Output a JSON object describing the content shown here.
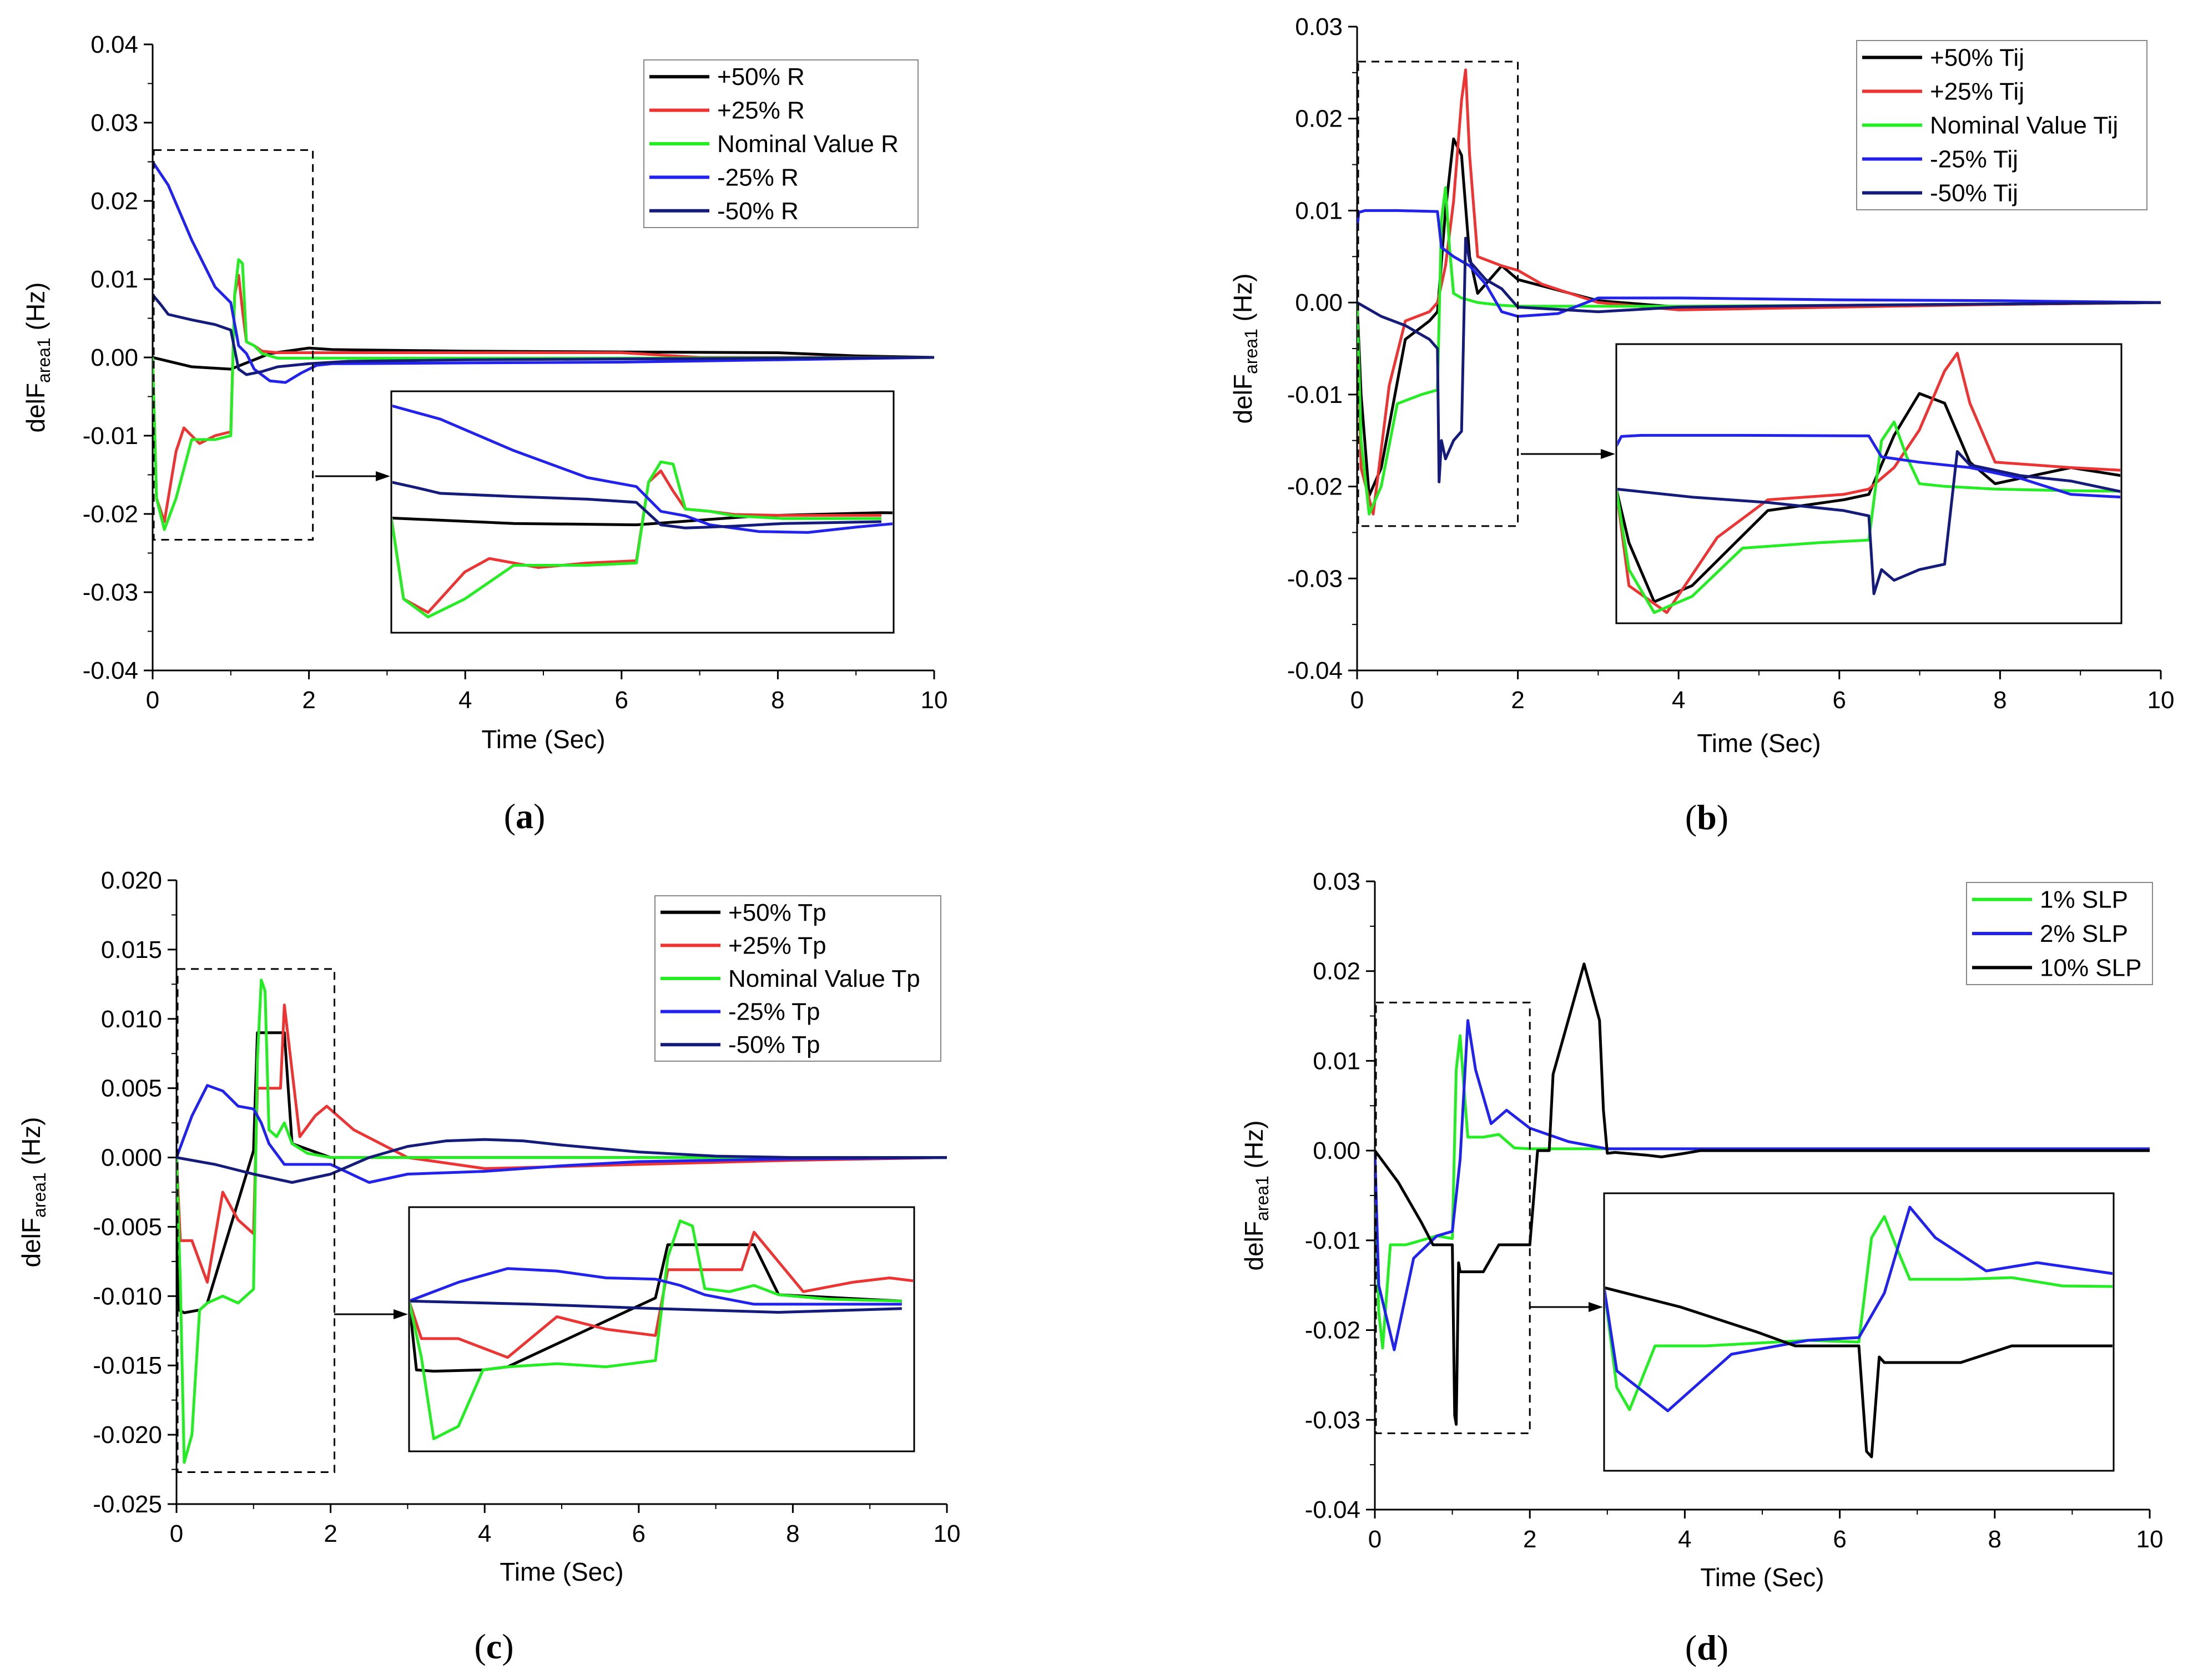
{
  "figure": {
    "panels": [
      "a",
      "b",
      "c",
      "d"
    ]
  },
  "chart_data": [
    {
      "id": "a",
      "type": "line",
      "caption_letter": "a",
      "xlabel": "Time (Sec)",
      "ylabel_main": "delF",
      "ylabel_sub": "area1",
      "ylabel_unit": " (Hz)",
      "xlim": [
        0,
        10
      ],
      "ylim": [
        -0.04,
        0.04
      ],
      "xticks": [
        0,
        2,
        4,
        6,
        8,
        10
      ],
      "xtick_labels": [
        "0",
        "2",
        "4",
        "6",
        "8",
        "10"
      ],
      "yticks": [
        -0.04,
        -0.03,
        -0.02,
        -0.01,
        0,
        0.01,
        0.02,
        0.03,
        0.04
      ],
      "ytick_labels": [
        "-0.04",
        "-0.03",
        "-0.02",
        "-0.01",
        "0.00",
        "0.01",
        "0.02",
        "0.03",
        "0.04"
      ],
      "zoom_box": {
        "x": [
          0,
          2.05
        ],
        "y": [
          -0.0233,
          0.0265
        ]
      },
      "series": [
        {
          "name": "+50% R",
          "color": "#000000",
          "x": [
            0,
            0.5,
            1.0,
            1.5,
            2.0,
            2.3,
            4,
            6,
            8,
            9,
            10
          ],
          "y": [
            0,
            -0.0012,
            -0.0015,
            0.0005,
            0.0012,
            0.001,
            0.0008,
            0.0007,
            0.0006,
            0.0002,
            0
          ]
        },
        {
          "name": "+25% R",
          "color": "#ee3333",
          "x": [
            0,
            0.05,
            0.15,
            0.3,
            0.4,
            0.6,
            0.8,
            1.0,
            1.05,
            1.1,
            1.15,
            1.2,
            1.3,
            1.4,
            1.6,
            2,
            4,
            6,
            7,
            10
          ],
          "y": [
            0,
            -0.018,
            -0.021,
            -0.012,
            -0.009,
            -0.011,
            -0.01,
            -0.0095,
            0.008,
            0.0105,
            0.006,
            0.002,
            0.0015,
            0.0008,
            0.0006,
            0.0006,
            0.0006,
            0.0006,
            0,
            0
          ]
        },
        {
          "name": "Nominal Value R",
          "color": "#22ee22",
          "x": [
            0,
            0.05,
            0.15,
            0.3,
            0.5,
            0.8,
            1.0,
            1.05,
            1.1,
            1.15,
            1.2,
            1.3,
            1.4,
            1.6,
            2,
            4,
            6,
            10
          ],
          "y": [
            0,
            -0.018,
            -0.022,
            -0.018,
            -0.0105,
            -0.0105,
            -0.01,
            0.008,
            0.0125,
            0.012,
            0.002,
            0.0015,
            0.0005,
            -0.0001,
            -0.0001,
            -0.0001,
            -0.0001,
            0
          ]
        },
        {
          "name": "-25% R",
          "color": "#2222ee",
          "x": [
            0,
            0.2,
            0.5,
            0.8,
            1.0,
            1.1,
            1.2,
            1.3,
            1.5,
            1.7,
            1.9,
            2.1,
            2.3,
            4,
            6,
            10
          ],
          "y": [
            0.025,
            0.022,
            0.015,
            0.009,
            0.007,
            0.0015,
            0.0005,
            -0.0015,
            -0.003,
            -0.0032,
            -0.002,
            -0.001,
            -0.0008,
            -0.0007,
            -0.0006,
            0
          ]
        },
        {
          "name": "-50% R",
          "color": "#141b7a",
          "x": [
            0,
            0.1,
            0.2,
            0.5,
            0.8,
            1.0,
            1.1,
            1.2,
            1.4,
            1.6,
            2.0,
            2.5,
            4,
            6,
            10
          ],
          "y": [
            0.008,
            0.0068,
            0.0055,
            0.0048,
            0.0042,
            0.0035,
            -0.0015,
            -0.0022,
            -0.0018,
            -0.0012,
            -0.0008,
            -0.0005,
            -0.0003,
            -0.0002,
            0
          ]
        }
      ],
      "legend": [
        "+50% R",
        "+25% R",
        "Nominal Value R",
        "-25% R",
        "-50% R"
      ]
    },
    {
      "id": "b",
      "type": "line",
      "caption_letter": "b",
      "xlabel": "Time (Sec)",
      "ylabel_main": "delF",
      "ylabel_sub": "area1",
      "ylabel_unit": " (Hz)",
      "xlim": [
        0,
        10
      ],
      "ylim": [
        -0.04,
        0.03
      ],
      "xticks": [
        0,
        2,
        4,
        6,
        8,
        10
      ],
      "xtick_labels": [
        "0",
        "2",
        "4",
        "6",
        "8",
        "10"
      ],
      "yticks": [
        -0.04,
        -0.03,
        -0.02,
        -0.01,
        0,
        0.01,
        0.02,
        0.03
      ],
      "ytick_labels": [
        "-0.04",
        "-0.03",
        "-0.02",
        "-0.01",
        "0.00",
        "0.01",
        "0.02",
        "0.03"
      ],
      "zoom_box": {
        "x": [
          0,
          2.0
        ],
        "y": [
          -0.0243,
          0.0262
        ]
      },
      "series": [
        {
          "name": "+50% Tij",
          "color": "#000000",
          "x": [
            0,
            0.05,
            0.15,
            0.3,
            0.6,
            0.9,
            1.0,
            1.1,
            1.2,
            1.3,
            1.4,
            1.5,
            1.6,
            1.8,
            2.0,
            3,
            4,
            6,
            8,
            10
          ],
          "y": [
            0,
            -0.01,
            -0.021,
            -0.018,
            -0.004,
            -0.002,
            -0.001,
            0.01,
            0.0178,
            0.016,
            0.005,
            0.001,
            0.002,
            0.004,
            0.0025,
            0.0002,
            -0.0005,
            -0.0004,
            -0.0002,
            0
          ]
        },
        {
          "name": "+25% Tij",
          "color": "#ee3333",
          "x": [
            0,
            0.05,
            0.2,
            0.4,
            0.6,
            0.9,
            1.0,
            1.1,
            1.2,
            1.3,
            1.35,
            1.4,
            1.5,
            1.8,
            2.0,
            2.3,
            3,
            4,
            6,
            8,
            10
          ],
          "y": [
            0,
            -0.018,
            -0.023,
            -0.009,
            -0.002,
            -0.001,
            0,
            0.004,
            0.011,
            0.022,
            0.0253,
            0.016,
            0.005,
            0.004,
            0.0035,
            0.002,
            0,
            -0.0008,
            -0.0005,
            -0.0002,
            0
          ]
        },
        {
          "name": "Nominal Value Tij",
          "color": "#22ee22",
          "x": [
            0,
            0.05,
            0.15,
            0.3,
            0.5,
            0.8,
            1.0,
            1.05,
            1.1,
            1.15,
            1.2,
            1.3,
            1.5,
            1.8,
            2,
            3,
            4,
            6,
            10
          ],
          "y": [
            0,
            -0.015,
            -0.023,
            -0.02,
            -0.011,
            -0.01,
            -0.0095,
            0.009,
            0.0125,
            0.006,
            0.001,
            0.0005,
            0,
            -0.0003,
            -0.0004,
            -0.0004,
            -0.0004,
            -0.0003,
            0
          ]
        },
        {
          "name": "-25% Tij",
          "color": "#2222ee",
          "x": [
            0,
            0.02,
            0.1,
            0.5,
            1.0,
            1.05,
            1.2,
            1.4,
            1.6,
            1.8,
            2.0,
            2.5,
            3,
            4,
            6,
            8,
            10
          ],
          "y": [
            0.008,
            0.0098,
            0.01,
            0.01,
            0.0099,
            0.006,
            0.005,
            0.004,
            0.002,
            -0.001,
            -0.0015,
            -0.0012,
            0.0005,
            0.0005,
            0.0003,
            0.0002,
            0
          ]
        },
        {
          "name": "-50% Tij",
          "color": "#141b7a",
          "x": [
            0,
            0.3,
            0.6,
            0.9,
            1.0,
            1.02,
            1.05,
            1.1,
            1.15,
            1.2,
            1.3,
            1.35,
            1.4,
            1.6,
            1.8,
            2.0,
            3,
            4,
            6,
            10
          ],
          "y": [
            0,
            -0.0015,
            -0.0025,
            -0.004,
            -0.005,
            -0.0195,
            -0.015,
            -0.017,
            -0.016,
            -0.015,
            -0.014,
            0.007,
            0.0045,
            0.0025,
            0.0015,
            -0.0005,
            -0.001,
            -0.0005,
            -0.0003,
            0
          ]
        }
      ],
      "legend": [
        "+50% Tij",
        "+25% Tij",
        "Nominal Value Tij",
        "-25% Tij",
        "-50% Tij"
      ]
    },
    {
      "id": "c",
      "type": "line",
      "caption_letter": "c",
      "xlabel": "Time (Sec)",
      "ylabel_main": "delF",
      "ylabel_sub": "area1",
      "ylabel_unit": " (Hz)",
      "xlim": [
        0,
        10
      ],
      "ylim": [
        -0.025,
        0.02
      ],
      "xticks": [
        0,
        2,
        4,
        6,
        8,
        10
      ],
      "xtick_labels": [
        "0",
        "2",
        "4",
        "6",
        "8",
        "10"
      ],
      "yticks": [
        -0.025,
        -0.02,
        -0.015,
        -0.01,
        -0.005,
        0,
        0.005,
        0.01,
        0.015,
        0.02
      ],
      "ytick_labels": [
        "-0.025",
        "-0.020",
        "-0.015",
        "-0.010",
        "-0.005",
        "0.000",
        "0.005",
        "0.010",
        "0.015",
        "0.020"
      ],
      "zoom_box": {
        "x": [
          0,
          2.05
        ],
        "y": [
          -0.0227,
          0.0136
        ]
      },
      "series": [
        {
          "name": "+50% Tp",
          "color": "#000000",
          "x": [
            0,
            0.03,
            0.1,
            0.3,
            0.4,
            1.0,
            1.05,
            1.4,
            1.5,
            2.0,
            4,
            6,
            10
          ],
          "y": [
            0,
            -0.011,
            -0.0112,
            -0.011,
            -0.0105,
            0.0005,
            0.009,
            0.009,
            0.001,
            0,
            0,
            0,
            0
          ]
        },
        {
          "name": "+25% Tp",
          "color": "#ee3333",
          "x": [
            0,
            0.05,
            0.2,
            0.4,
            0.6,
            0.8,
            1.0,
            1.05,
            1.35,
            1.4,
            1.6,
            1.8,
            1.95,
            2.3,
            3,
            4,
            6,
            8,
            10
          ],
          "y": [
            0,
            -0.006,
            -0.006,
            -0.009,
            -0.0025,
            -0.0045,
            -0.0055,
            0.005,
            0.005,
            0.011,
            0.0015,
            0.003,
            0.0037,
            0.002,
            0,
            -0.0008,
            -0.0005,
            -0.0002,
            0
          ]
        },
        {
          "name": "Nominal Value Tp",
          "color": "#22ee22",
          "x": [
            0,
            0.05,
            0.1,
            0.2,
            0.3,
            0.4,
            0.6,
            0.8,
            1.0,
            1.05,
            1.1,
            1.15,
            1.2,
            1.3,
            1.4,
            1.5,
            1.7,
            2.0,
            4,
            6,
            10
          ],
          "y": [
            0,
            -0.009,
            -0.022,
            -0.02,
            -0.011,
            -0.0105,
            -0.01,
            -0.0105,
            -0.0095,
            0.007,
            0.0128,
            0.012,
            0.002,
            0.0015,
            0.0025,
            0.001,
            0.0003,
            0,
            0,
            0,
            0
          ]
        },
        {
          "name": "-25% Tp",
          "color": "#2222ee",
          "x": [
            0,
            0.2,
            0.4,
            0.6,
            0.8,
            1.0,
            1.1,
            1.2,
            1.4,
            1.6,
            2.0,
            2.5,
            3,
            4,
            5,
            6,
            8,
            10
          ],
          "y": [
            0,
            0.003,
            0.0052,
            0.0048,
            0.0037,
            0.0035,
            0.0025,
            0.001,
            -0.0005,
            -0.0005,
            -0.0005,
            -0.0018,
            -0.0012,
            -0.001,
            -0.0006,
            -0.0003,
            -0.0001,
            0
          ]
        },
        {
          "name": "-50% Tp",
          "color": "#141b7a",
          "x": [
            0,
            0.5,
            1.0,
            1.5,
            2.0,
            2.5,
            3,
            3.5,
            4,
            4.5,
            5,
            6,
            7,
            8,
            10
          ],
          "y": [
            0,
            -0.0005,
            -0.0012,
            -0.0018,
            -0.0012,
            0,
            0.0008,
            0.0012,
            0.0013,
            0.0012,
            0.0009,
            0.0004,
            0.0001,
            0,
            0
          ]
        }
      ],
      "legend": [
        "+50% Tp",
        "+25% Tp",
        "Nominal Value Tp",
        "-25% Tp",
        "-50% Tp"
      ]
    },
    {
      "id": "d",
      "type": "line",
      "caption_letter": "d",
      "xlabel": "Time (Sec)",
      "ylabel_main": "delF",
      "ylabel_sub": "area1",
      "ylabel_unit": " (Hz)",
      "xlim": [
        0,
        10
      ],
      "ylim": [
        -0.04,
        0.03
      ],
      "xticks": [
        0,
        2,
        4,
        6,
        8,
        10
      ],
      "xtick_labels": [
        "0",
        "2",
        "4",
        "6",
        "8",
        "10"
      ],
      "yticks": [
        -0.04,
        -0.03,
        -0.02,
        -0.01,
        0,
        0.01,
        0.02,
        0.03
      ],
      "ytick_labels": [
        "-0.04",
        "-0.03",
        "-0.02",
        "-0.01",
        "0.00",
        "0.01",
        "0.02",
        "0.03"
      ],
      "zoom_box": {
        "x": [
          0,
          2.0
        ],
        "y": [
          -0.0315,
          0.0165
        ]
      },
      "series": [
        {
          "name": "1% SLP",
          "color": "#22ee22",
          "x": [
            0,
            0.05,
            0.1,
            0.2,
            0.4,
            0.6,
            0.8,
            1.0,
            1.05,
            1.1,
            1.15,
            1.2,
            1.4,
            1.6,
            1.8,
            2.0,
            3,
            4,
            6,
            10
          ],
          "y": [
            0,
            -0.018,
            -0.022,
            -0.0105,
            -0.0105,
            -0.01,
            -0.0095,
            -0.0098,
            0.009,
            0.0128,
            0.007,
            0.0015,
            0.0015,
            0.0018,
            0.0003,
            0.0002,
            0.0002,
            0.0002,
            0.0002,
            0.0002
          ]
        },
        {
          "name": "2% SLP",
          "color": "#2222ee",
          "x": [
            0,
            0.05,
            0.25,
            0.5,
            0.8,
            1.0,
            1.1,
            1.2,
            1.3,
            1.5,
            1.7,
            2.0,
            2.5,
            3,
            4,
            6,
            10
          ],
          "y": [
            0,
            -0.015,
            -0.0222,
            -0.012,
            -0.0095,
            -0.009,
            -0.001,
            0.0145,
            0.009,
            0.003,
            0.0045,
            0.0025,
            0.001,
            0.0002,
            0.0002,
            0.0002,
            0.0002
          ]
        },
        {
          "name": "10% SLP",
          "color": "#000000",
          "x": [
            0,
            0.3,
            0.6,
            0.75,
            0.9,
            1.0,
            1.03,
            1.05,
            1.08,
            1.1,
            1.15,
            1.4,
            1.6,
            1.7,
            2.0,
            2.1,
            2.25,
            2.3,
            2.7,
            2.9,
            2.95,
            3.0,
            3.1,
            3.5,
            3.7,
            4.0,
            4.2,
            6,
            10
          ],
          "y": [
            0,
            -0.0035,
            -0.008,
            -0.0105,
            -0.0105,
            -0.0105,
            -0.0295,
            -0.0305,
            -0.0125,
            -0.0135,
            -0.0135,
            -0.0135,
            -0.0105,
            -0.0105,
            -0.0105,
            0,
            0,
            0.0085,
            0.0208,
            0.0145,
            0.0045,
            -0.0003,
            -0.0002,
            -0.0005,
            -0.0007,
            -0.0003,
            0,
            0,
            0
          ]
        }
      ],
      "legend": [
        "1% SLP",
        "2% SLP",
        "10% SLP"
      ]
    }
  ]
}
